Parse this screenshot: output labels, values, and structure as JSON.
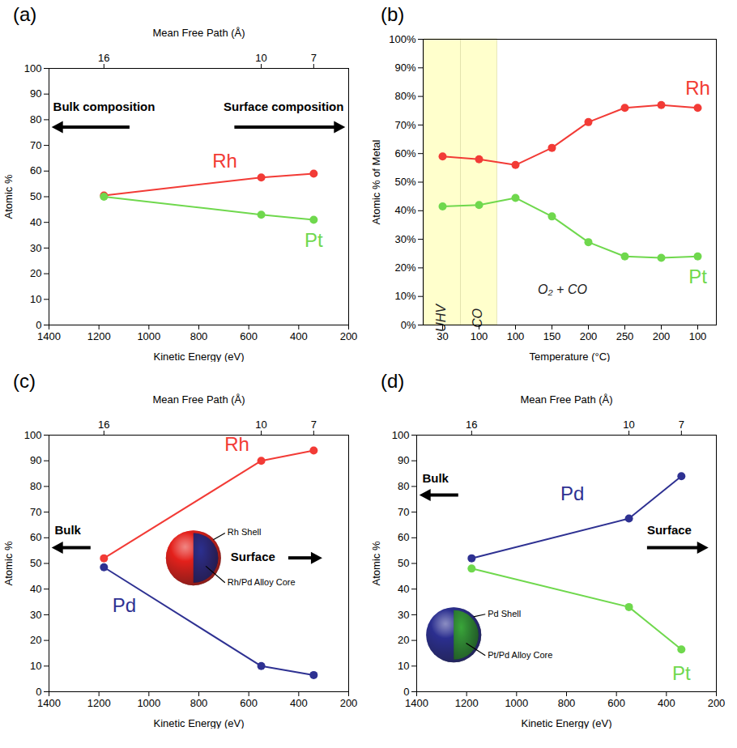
{
  "chart_data": [
    {
      "title": "(a)",
      "type": "line",
      "xlabel": "Kinetic Energy (eV)",
      "ylabel": "Atomic %",
      "x2label": "Mean Free Path (Å)",
      "x": [
        1180,
        550,
        340
      ],
      "xlim": [
        1400,
        200
      ],
      "xticks": [
        1400,
        1200,
        1000,
        800,
        600,
        400,
        200
      ],
      "x2ticks": [
        {
          "value": 1180,
          "label": "16"
        },
        {
          "value": 550,
          "label": "10"
        },
        {
          "value": 340,
          "label": "7"
        }
      ],
      "ylim": [
        0,
        100
      ],
      "yticks": [
        0,
        10,
        20,
        30,
        40,
        50,
        60,
        70,
        80,
        90,
        100
      ],
      "grid": false,
      "series": [
        {
          "name": "Rh",
          "color": "#f23b36",
          "marker": "circle",
          "values": [
            50.5,
            57.5,
            59
          ]
        },
        {
          "name": "Pt",
          "color": "#6fd84d",
          "marker": "circle",
          "values": [
            50,
            43,
            41
          ]
        }
      ],
      "direction_labels": {
        "bulk": "Bulk composition",
        "surface": "Surface composition"
      }
    },
    {
      "title": "(b)",
      "type": "line",
      "xlabel": "Temperature (°C)",
      "ylabel": "Atomic % of Metal",
      "categories": [
        "30",
        "100",
        "100",
        "150",
        "200",
        "250",
        "200",
        "100"
      ],
      "ylim": [
        0,
        100
      ],
      "yticks": [
        {
          "value": 0,
          "label": "0%"
        },
        {
          "value": 10,
          "label": "10%"
        },
        {
          "value": 20,
          "label": "20%"
        },
        {
          "value": 30,
          "label": "30%"
        },
        {
          "value": 40,
          "label": "40%"
        },
        {
          "value": 50,
          "label": "50%"
        },
        {
          "value": 60,
          "label": "60%"
        },
        {
          "value": 70,
          "label": "70%"
        },
        {
          "value": 80,
          "label": "80%"
        },
        {
          "value": 90,
          "label": "90%"
        },
        {
          "value": 100,
          "label": "100%"
        }
      ],
      "grid": false,
      "series": [
        {
          "name": "Rh",
          "color": "#f23b36",
          "marker": "circle",
          "values": [
            59,
            58,
            56,
            62,
            71,
            76,
            77,
            76
          ]
        },
        {
          "name": "Pt",
          "color": "#6fd84d",
          "marker": "circle",
          "values": [
            41.5,
            42,
            44.5,
            38,
            29,
            24,
            23.5,
            24
          ]
        }
      ],
      "regions": [
        {
          "label": "UHV",
          "from": 0,
          "to": 0,
          "color": "#ffffcc"
        },
        {
          "label": "CO",
          "from": 1,
          "to": 1,
          "color": "#ffffcc"
        }
      ],
      "annotations": [
        "O₂ + CO"
      ]
    },
    {
      "title": "(c)",
      "type": "line",
      "xlabel": "Kinetic Energy (eV)",
      "ylabel": "Atomic %",
      "x2label": "Mean Free Path (Å)",
      "x": [
        1180,
        550,
        340
      ],
      "xlim": [
        1400,
        200
      ],
      "xticks": [
        1400,
        1200,
        1000,
        800,
        600,
        400,
        200
      ],
      "x2ticks": [
        {
          "value": 1180,
          "label": "16"
        },
        {
          "value": 550,
          "label": "10"
        },
        {
          "value": 340,
          "label": "7"
        }
      ],
      "ylim": [
        0,
        100
      ],
      "yticks": [
        0,
        10,
        20,
        30,
        40,
        50,
        60,
        70,
        80,
        90,
        100
      ],
      "grid": false,
      "series": [
        {
          "name": "Rh",
          "color": "#f23b36",
          "marker": "circle",
          "values": [
            52,
            90,
            94
          ]
        },
        {
          "name": "Pd",
          "color": "#2e3192",
          "marker": "circle",
          "values": [
            48.5,
            10,
            6.5
          ]
        }
      ],
      "direction_labels": {
        "bulk": "Bulk",
        "surface": "Surface"
      },
      "inset": {
        "shell": "Rh Shell",
        "core": "Rh/Pd Alloy Core",
        "shell_color": "#e3211c",
        "core_color": "#2b2f8f"
      }
    },
    {
      "title": "(d)",
      "type": "line",
      "xlabel": "Kinetic Energy (eV)",
      "ylabel": "Atomic %",
      "x2label": "Mean Free Path (Å)",
      "x": [
        1180,
        550,
        340
      ],
      "xlim": [
        1400,
        200
      ],
      "xticks": [
        1400,
        1200,
        1000,
        800,
        600,
        400,
        200
      ],
      "x2ticks": [
        {
          "value": 1180,
          "label": "16"
        },
        {
          "value": 550,
          "label": "10"
        },
        {
          "value": 340,
          "label": "7"
        }
      ],
      "ylim": [
        0,
        100
      ],
      "yticks": [
        0,
        10,
        20,
        30,
        40,
        50,
        60,
        70,
        80,
        90,
        100
      ],
      "grid": false,
      "series": [
        {
          "name": "Pd",
          "color": "#2e3192",
          "marker": "circle",
          "values": [
            52,
            67.5,
            84
          ]
        },
        {
          "name": "Pt",
          "color": "#6fd84d",
          "marker": "circle",
          "values": [
            48,
            33,
            16.5
          ]
        }
      ],
      "direction_labels": {
        "bulk": "Bulk",
        "surface": "Surface"
      },
      "inset": {
        "shell": "Pd Shell",
        "core": "Pt/Pd Alloy Core",
        "shell_color": "#2b2f8f",
        "core_color": "#3aa63a"
      }
    }
  ]
}
